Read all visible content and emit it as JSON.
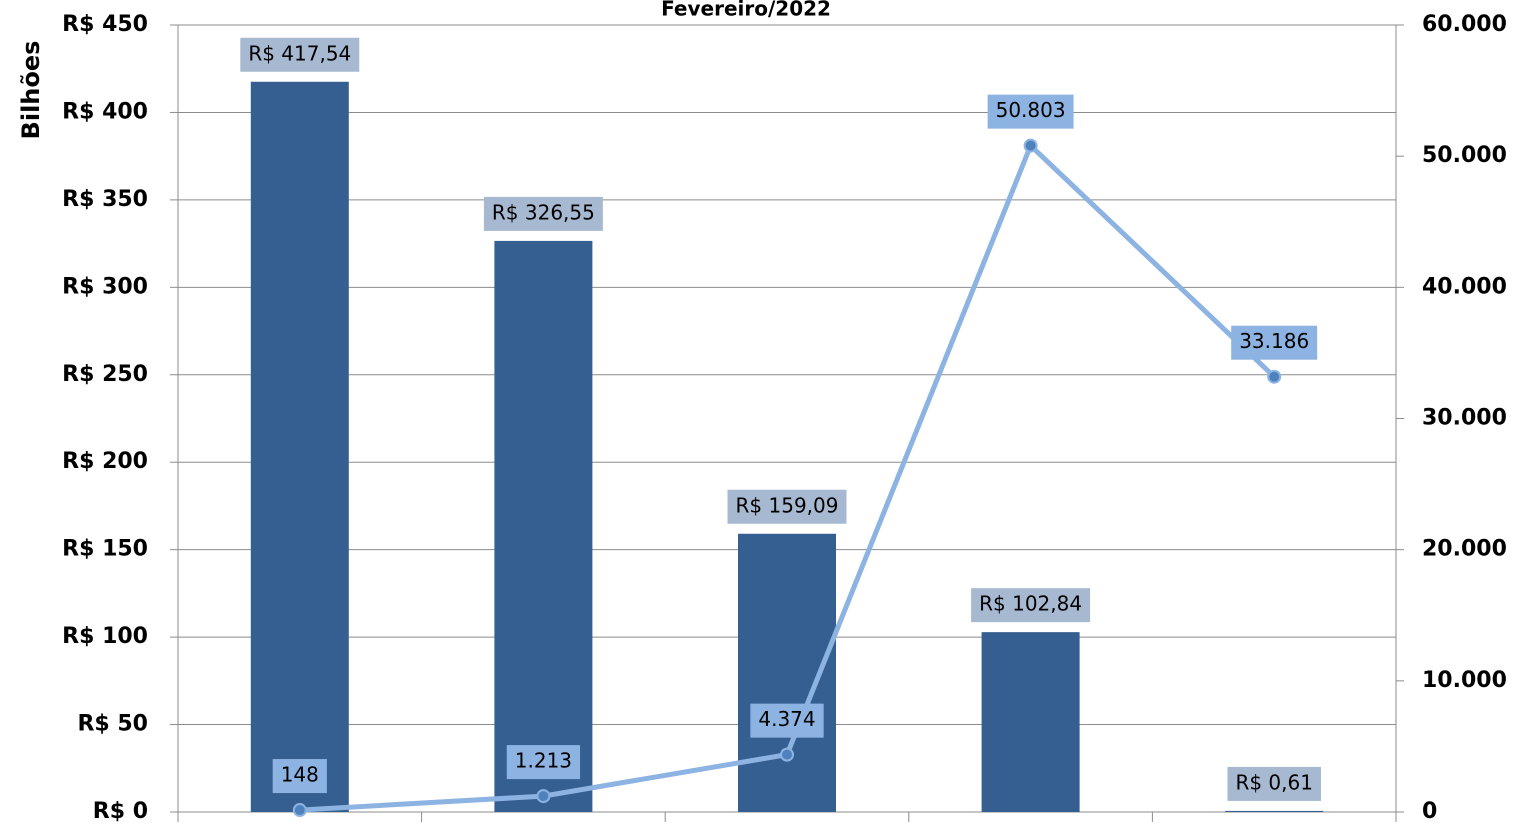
{
  "chart_data": {
    "type": "bar_line",
    "title": "Fevereiro/2022",
    "ylabel": "Bilhões",
    "categories": [
      null,
      null,
      null,
      null,
      null
    ],
    "series": [
      {
        "type": "bar",
        "color": "#365f91",
        "values": [
          417.54,
          326.55,
          159.09,
          102.84,
          0.61
        ],
        "value_labels": [
          "R$ 417,54",
          "R$ 326,55",
          "R$ 159,09",
          "R$ 102,84",
          "R$ 0,61"
        ]
      },
      {
        "type": "line",
        "axis": "y2",
        "color": "#8db3e2",
        "values": [
          148,
          1213,
          4374,
          50803,
          33186
        ],
        "value_labels": [
          "148",
          "1.213",
          "4.374",
          "50.803",
          "33.186"
        ]
      }
    ],
    "ylim": [
      0,
      450
    ],
    "yticks": [
      {
        "value": 0,
        "label": "R$ 0"
      },
      {
        "value": 50,
        "label": "R$ 50"
      },
      {
        "value": 100,
        "label": "R$ 100"
      },
      {
        "value": 150,
        "label": "R$ 150"
      },
      {
        "value": 200,
        "label": "R$ 200"
      },
      {
        "value": 250,
        "label": "R$ 250"
      },
      {
        "value": 300,
        "label": "R$ 300"
      },
      {
        "value": 350,
        "label": "R$ 350"
      },
      {
        "value": 400,
        "label": "R$ 400"
      },
      {
        "value": 450,
        "label": "R$ 450"
      }
    ],
    "y2lim": [
      0,
      60000
    ],
    "y2ticks": [
      0,
      {
        "value": 10000,
        "label": "10.000"
      },
      {
        "value": 20000,
        "label": "20.000"
      },
      {
        "value": 30000,
        "label": "30.000"
      },
      {
        "value": 40000,
        "label": "40.000"
      },
      {
        "value": 50000,
        "label": "50.000"
      },
      {
        "value": 60000,
        "label": "60.000"
      }
    ],
    "grid": true
  }
}
